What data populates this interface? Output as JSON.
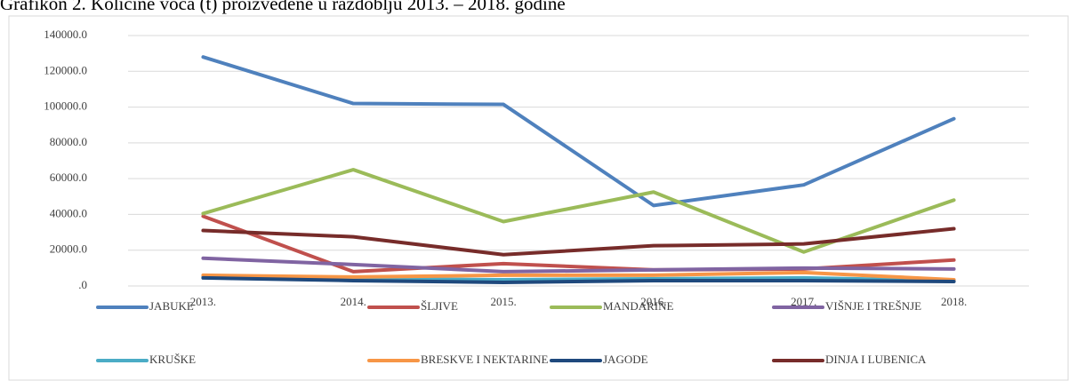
{
  "chart_data": {
    "type": "line",
    "title": "Grafikon 2. Količine voća (t) proizvedene u razdoblju 2013. – 2018. godine",
    "categories": [
      "2013.",
      "2014.",
      "2015.",
      "2016.",
      "2017.",
      "2018."
    ],
    "series": [
      {
        "name": "JABUKE",
        "color": "#4f81bd",
        "values": [
          128000,
          102000,
          101500,
          45000,
          56500,
          93500
        ]
      },
      {
        "name": "ŠLJIVE",
        "color": "#c0504d",
        "values": [
          39000,
          8000,
          12500,
          9000,
          9500,
          14500
        ]
      },
      {
        "name": "MANDARINE",
        "color": "#9bbb59",
        "values": [
          40500,
          65000,
          36000,
          52500,
          19000,
          48000
        ]
      },
      {
        "name": "VIŠNJE I TREŠNJE",
        "color": "#8064a2",
        "values": [
          15500,
          12000,
          8000,
          9000,
          10000,
          9500
        ]
      },
      {
        "name": "KRUŠKE",
        "color": "#4bacc6",
        "values": [
          5000,
          4000,
          3500,
          4000,
          4500,
          3000
        ]
      },
      {
        "name": "BRESKVE I NEKTARINE",
        "color": "#f79646",
        "values": [
          6000,
          5000,
          6000,
          6000,
          7500,
          3500
        ]
      },
      {
        "name": "JAGODE",
        "color": "#1f497d",
        "values": [
          4500,
          3000,
          2000,
          3000,
          3000,
          2500
        ]
      },
      {
        "name": "DINJA I LUBENICA",
        "color": "#772c2a",
        "values": [
          31000,
          27500,
          17500,
          22500,
          23500,
          32000
        ]
      }
    ],
    "ylim": [
      0,
      140000
    ],
    "yticks": [
      {
        "value": 0,
        "label": ".0"
      },
      {
        "value": 20000,
        "label": "20000.0"
      },
      {
        "value": 40000,
        "label": "40000.0"
      },
      {
        "value": 60000,
        "label": "60000.0"
      },
      {
        "value": 80000,
        "label": "80000.0"
      },
      {
        "value": 100000,
        "label": "100000.0"
      },
      {
        "value": 120000,
        "label": "120000.0"
      },
      {
        "value": 140000,
        "label": "140000.0"
      }
    ],
    "grid": true,
    "legend": "bottom"
  }
}
